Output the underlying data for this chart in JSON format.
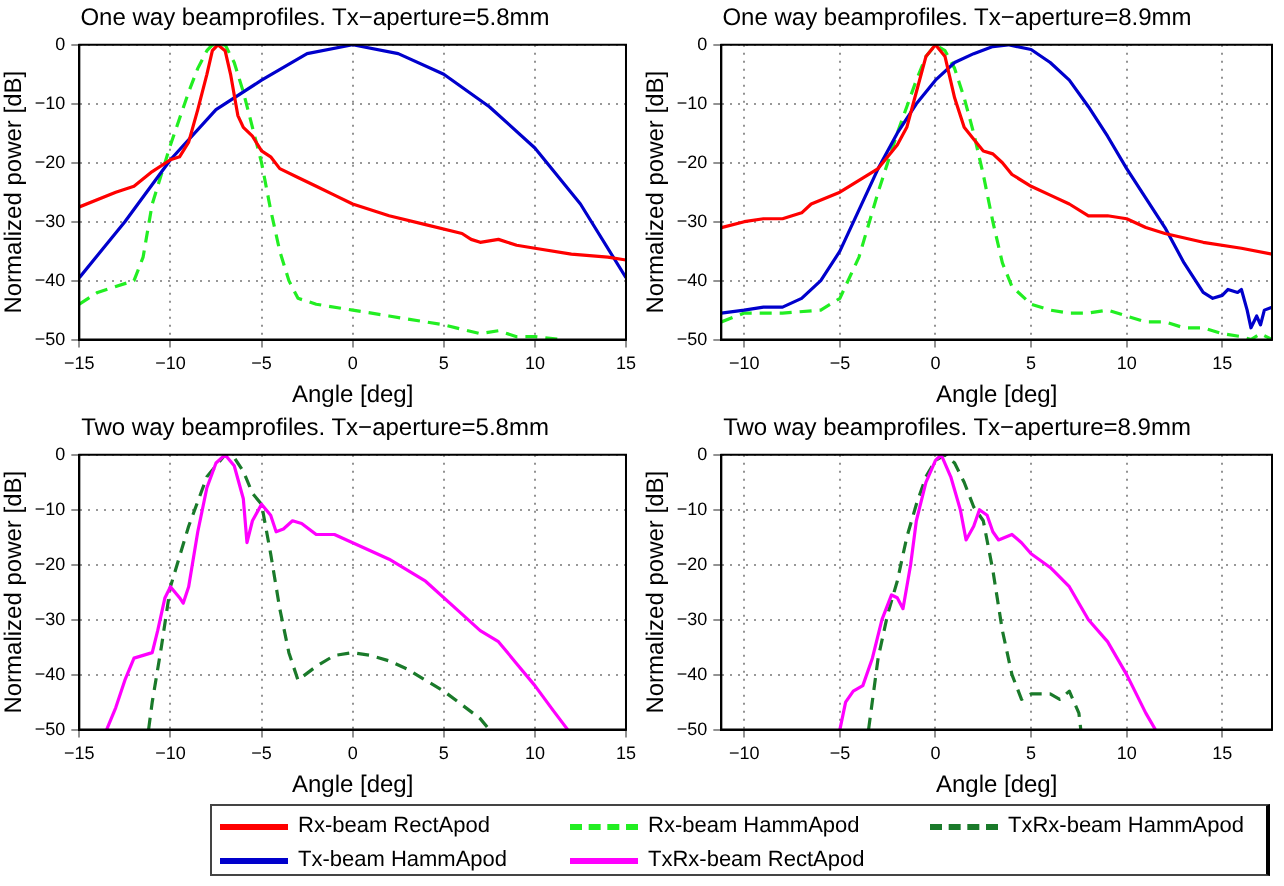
{
  "chart_data": [
    {
      "type": "line",
      "title": "One way beamprofiles. Tx−aperture=5.8mm",
      "xlabel": "Angle [deg]",
      "ylabel": "Normalized power [dB]",
      "xlim": [
        -15,
        15
      ],
      "xticks": [
        -15,
        -10,
        -5,
        0,
        5,
        10,
        15
      ],
      "ylim": [
        -50,
        0
      ],
      "yticks": [
        -50,
        -40,
        -30,
        -20,
        -10,
        0
      ],
      "grid": true,
      "legend": "bottom",
      "series": [
        {
          "name": "Rx-beam RectApod",
          "color": "#ff0000",
          "line_style": "solid",
          "x": [
            -15,
            -13,
            -12,
            -11,
            -10,
            -9.5,
            -9,
            -8.5,
            -8,
            -7.7,
            -7.4,
            -7,
            -6.7,
            -6.3,
            -6,
            -5.5,
            -5,
            -4.5,
            -4,
            -3,
            -2,
            -1,
            0,
            2,
            4,
            6,
            6.5,
            7,
            8,
            9,
            10,
            12,
            14,
            15
          ],
          "values": [
            -27.5,
            -25,
            -24,
            -21.5,
            -19.5,
            -19,
            -16.5,
            -11,
            -5,
            -1,
            0,
            -1,
            -5,
            -12,
            -14,
            -15.5,
            -18,
            -19,
            -21,
            -22.5,
            -24,
            -25.5,
            -27,
            -29,
            -30.5,
            -32,
            -33,
            -33.5,
            -33,
            -34,
            -34.5,
            -35.5,
            -36,
            -36.5
          ]
        },
        {
          "name": "Tx-beam HammApod",
          "color": "#0000cc",
          "line_style": "solid",
          "x": [
            -15,
            -12.5,
            -10,
            -7.5,
            -5,
            -2.5,
            0,
            2.5,
            5,
            7.5,
            10,
            12.5,
            15
          ],
          "values": [
            -39.5,
            -30,
            -19.5,
            -11,
            -6,
            -1.5,
            0,
            -1.5,
            -5,
            -10.5,
            -17.5,
            -27,
            -39.5
          ]
        },
        {
          "name": "Rx-beam HammApod",
          "color": "#22ee22",
          "line_style": "dashed",
          "x": [
            -15,
            -14,
            -12,
            -11.5,
            -11,
            -10,
            -9,
            -8.5,
            -8,
            -7.7,
            -7,
            -6.5,
            -6,
            -5.5,
            -5,
            -4.5,
            -4,
            -3.5,
            -3,
            -2,
            0,
            2,
            5,
            7,
            8,
            9,
            10,
            11.5
          ],
          "values": [
            -44,
            -42,
            -40,
            -36,
            -27,
            -17,
            -8,
            -4,
            -1,
            0,
            0,
            -3,
            -8,
            -14,
            -20,
            -28,
            -35,
            -40,
            -43,
            -44,
            -45,
            -46,
            -47.5,
            -49,
            -48.5,
            -49.5,
            -49.5,
            -50
          ]
        }
      ]
    },
    {
      "type": "line",
      "title": "One way beamprofiles. Tx−aperture=8.9mm",
      "xlabel": "Angle [deg]",
      "ylabel": "Normalized power [dB]",
      "xlim": [
        -11.2,
        17.6
      ],
      "xticks": [
        -10,
        -5,
        0,
        5,
        10,
        15
      ],
      "ylim": [
        -50,
        0
      ],
      "yticks": [
        -50,
        -40,
        -30,
        -20,
        -10,
        0
      ],
      "grid": true,
      "legend": "bottom",
      "series": [
        {
          "name": "Rx-beam RectApod",
          "color": "#ff0000",
          "line_style": "solid",
          "x": [
            -11.2,
            -10,
            -9,
            -8,
            -7,
            -6.5,
            -5,
            -4,
            -3,
            -2.5,
            -2,
            -1.5,
            -1,
            -0.5,
            0,
            0.5,
            1,
            1.5,
            2,
            2.5,
            3,
            3.5,
            4,
            5,
            6,
            7,
            8,
            9,
            10,
            11,
            12,
            14,
            16,
            17.6
          ],
          "values": [
            -31,
            -30,
            -29.5,
            -29.5,
            -28.5,
            -27,
            -25,
            -23,
            -21,
            -19,
            -17,
            -14,
            -8,
            -2,
            0,
            -2,
            -9,
            -14,
            -16,
            -18,
            -18.5,
            -20,
            -22,
            -24,
            -25.5,
            -27,
            -29,
            -29,
            -29.5,
            -31,
            -32,
            -33.5,
            -34.5,
            -35.5
          ]
        },
        {
          "name": "Tx-beam HammApod",
          "color": "#0000cc",
          "line_style": "solid",
          "x": [
            -11.2,
            -10,
            -9,
            -8,
            -7,
            -6,
            -5,
            -4,
            -3,
            -2,
            -1,
            0,
            1,
            2,
            3,
            3.8,
            5,
            6,
            7,
            8,
            9,
            10,
            11,
            12,
            13,
            14,
            14.5,
            15,
            15.3,
            15.8,
            16,
            16.3,
            16.5,
            16.8,
            17,
            17.2,
            17.6
          ],
          "values": [
            -45.5,
            -45,
            -44.5,
            -44.5,
            -43,
            -40,
            -35,
            -28,
            -21,
            -15,
            -10,
            -6,
            -3,
            -1.5,
            -0.3,
            0,
            -0.8,
            -3,
            -6,
            -10.5,
            -15.5,
            -21,
            -26,
            -31,
            -37,
            -42,
            -43,
            -42.5,
            -41.5,
            -42,
            -41.5,
            -45,
            -48,
            -46,
            -47.5,
            -45,
            -44.5
          ]
        },
        {
          "name": "Rx-beam HammApod",
          "color": "#22ee22",
          "line_style": "dashed",
          "x": [
            -11.2,
            -10,
            -8,
            -6,
            -5,
            -4,
            -3,
            -2,
            -1,
            -0.5,
            0,
            0.5,
            1,
            1.5,
            2,
            2.5,
            3,
            3.5,
            4,
            5,
            6,
            7,
            8,
            9,
            10,
            11,
            12,
            13,
            14,
            15,
            16,
            16.5,
            17,
            17.6
          ],
          "values": [
            -47,
            -45.5,
            -45.5,
            -45,
            -43,
            -36,
            -25,
            -15,
            -6,
            -2,
            0,
            -1,
            -4,
            -9,
            -15,
            -22,
            -30,
            -37,
            -41,
            -44,
            -45,
            -45.5,
            -45.5,
            -45,
            -46,
            -47,
            -47,
            -48,
            -48,
            -49,
            -49.5,
            -50,
            -49,
            -50
          ]
        }
      ]
    },
    {
      "type": "line",
      "title": "Two way beamprofiles. Tx−aperture=5.8mm",
      "xlabel": "Angle [deg]",
      "ylabel": "Normalized power [dB]",
      "xlim": [
        -15,
        15
      ],
      "xticks": [
        -15,
        -10,
        -5,
        0,
        5,
        10,
        15
      ],
      "ylim": [
        -50,
        0
      ],
      "yticks": [
        -50,
        -40,
        -30,
        -20,
        -10,
        0
      ],
      "grid": true,
      "legend": "bottom",
      "series": [
        {
          "name": "TxRx-beam RectApod",
          "color": "#ff00ff",
          "line_style": "solid",
          "x": [
            -13.5,
            -13,
            -12.5,
            -12,
            -11.5,
            -11,
            -10.7,
            -10.3,
            -10,
            -9.5,
            -9.3,
            -9,
            -8.5,
            -8,
            -7.5,
            -7,
            -6.5,
            -6,
            -5.8,
            -5.5,
            -5,
            -4.5,
            -4.2,
            -3.8,
            -3.3,
            -2.8,
            -2,
            -1,
            0,
            2,
            4,
            6,
            7,
            8,
            9,
            10,
            11,
            11.8
          ],
          "values": [
            -50,
            -46,
            -41,
            -37,
            -36.5,
            -36,
            -32,
            -26,
            -24,
            -26,
            -27,
            -24,
            -14,
            -6,
            -1.5,
            0,
            -2,
            -8,
            -16,
            -12,
            -9,
            -11,
            -14,
            -13.5,
            -12,
            -12.5,
            -14.5,
            -14.5,
            -16,
            -19,
            -23,
            -29,
            -32,
            -34,
            -38,
            -42,
            -46.5,
            -50
          ]
        },
        {
          "name": "TxRx-beam HammApod",
          "color": "#1a7a2a",
          "line_style": "dashed",
          "x": [
            -11.2,
            -11,
            -10.5,
            -10,
            -9,
            -8,
            -7,
            -6.5,
            -6,
            -5.5,
            -5,
            -4.5,
            -4,
            -3.5,
            -3,
            -2,
            -1,
            0,
            1,
            2,
            3,
            4,
            5,
            6,
            7,
            7.5
          ],
          "values": [
            -50,
            -45,
            -35,
            -24,
            -13,
            -4,
            0,
            -0.5,
            -3,
            -7,
            -9,
            -18,
            -28,
            -36,
            -41,
            -38.5,
            -36.5,
            -36,
            -36.5,
            -37.5,
            -39,
            -41,
            -43,
            -45.5,
            -48,
            -50
          ]
        }
      ]
    },
    {
      "type": "line",
      "title": "Two way beamprofiles. Tx−aperture=8.9mm",
      "xlabel": "Angle [deg]",
      "ylabel": "Normalized power [dB]",
      "xlim": [
        -11.2,
        17.6
      ],
      "xticks": [
        -10,
        -5,
        0,
        5,
        10,
        15
      ],
      "ylim": [
        -50,
        0
      ],
      "yticks": [
        -50,
        -40,
        -30,
        -20,
        -10,
        0
      ],
      "grid": true,
      "legend": "bottom",
      "series": [
        {
          "name": "TxRx-beam RectApod",
          "color": "#ff00ff",
          "line_style": "solid",
          "x": [
            -5,
            -4.7,
            -4.3,
            -3.8,
            -3.3,
            -2.8,
            -2.3,
            -2,
            -1.7,
            -1.3,
            -1,
            -0.5,
            0,
            0.3,
            0.8,
            1.3,
            1.6,
            2,
            2.3,
            2.7,
            3,
            3.3,
            4,
            4.5,
            5,
            6,
            7,
            8,
            9,
            10,
            11,
            11.5
          ],
          "values": [
            -50,
            -45,
            -43,
            -42,
            -37,
            -30,
            -25.5,
            -26,
            -28,
            -20,
            -12,
            -5,
            -1,
            0,
            -4,
            -10,
            -15.5,
            -13,
            -10,
            -11,
            -14,
            -15.5,
            -14.5,
            -16,
            -18,
            -20.5,
            -24,
            -30,
            -34,
            -40,
            -47,
            -50
          ]
        },
        {
          "name": "TxRx-beam HammApod",
          "color": "#1a7a2a",
          "line_style": "dashed",
          "x": [
            -3.5,
            -3,
            -2.5,
            -2,
            -1.5,
            -1,
            -0.5,
            0,
            0.5,
            1,
            1.5,
            2,
            2.5,
            3,
            3.5,
            4,
            4.5,
            5,
            6,
            6.5,
            7,
            7.5,
            7.6
          ],
          "values": [
            -50,
            -37,
            -29,
            -23,
            -15,
            -9,
            -4,
            -1,
            0,
            -1.5,
            -5,
            -9.5,
            -12,
            -21,
            -32,
            -40,
            -44.5,
            -43.5,
            -43.5,
            -44.5,
            -43,
            -47,
            -50
          ]
        }
      ]
    }
  ]
}
